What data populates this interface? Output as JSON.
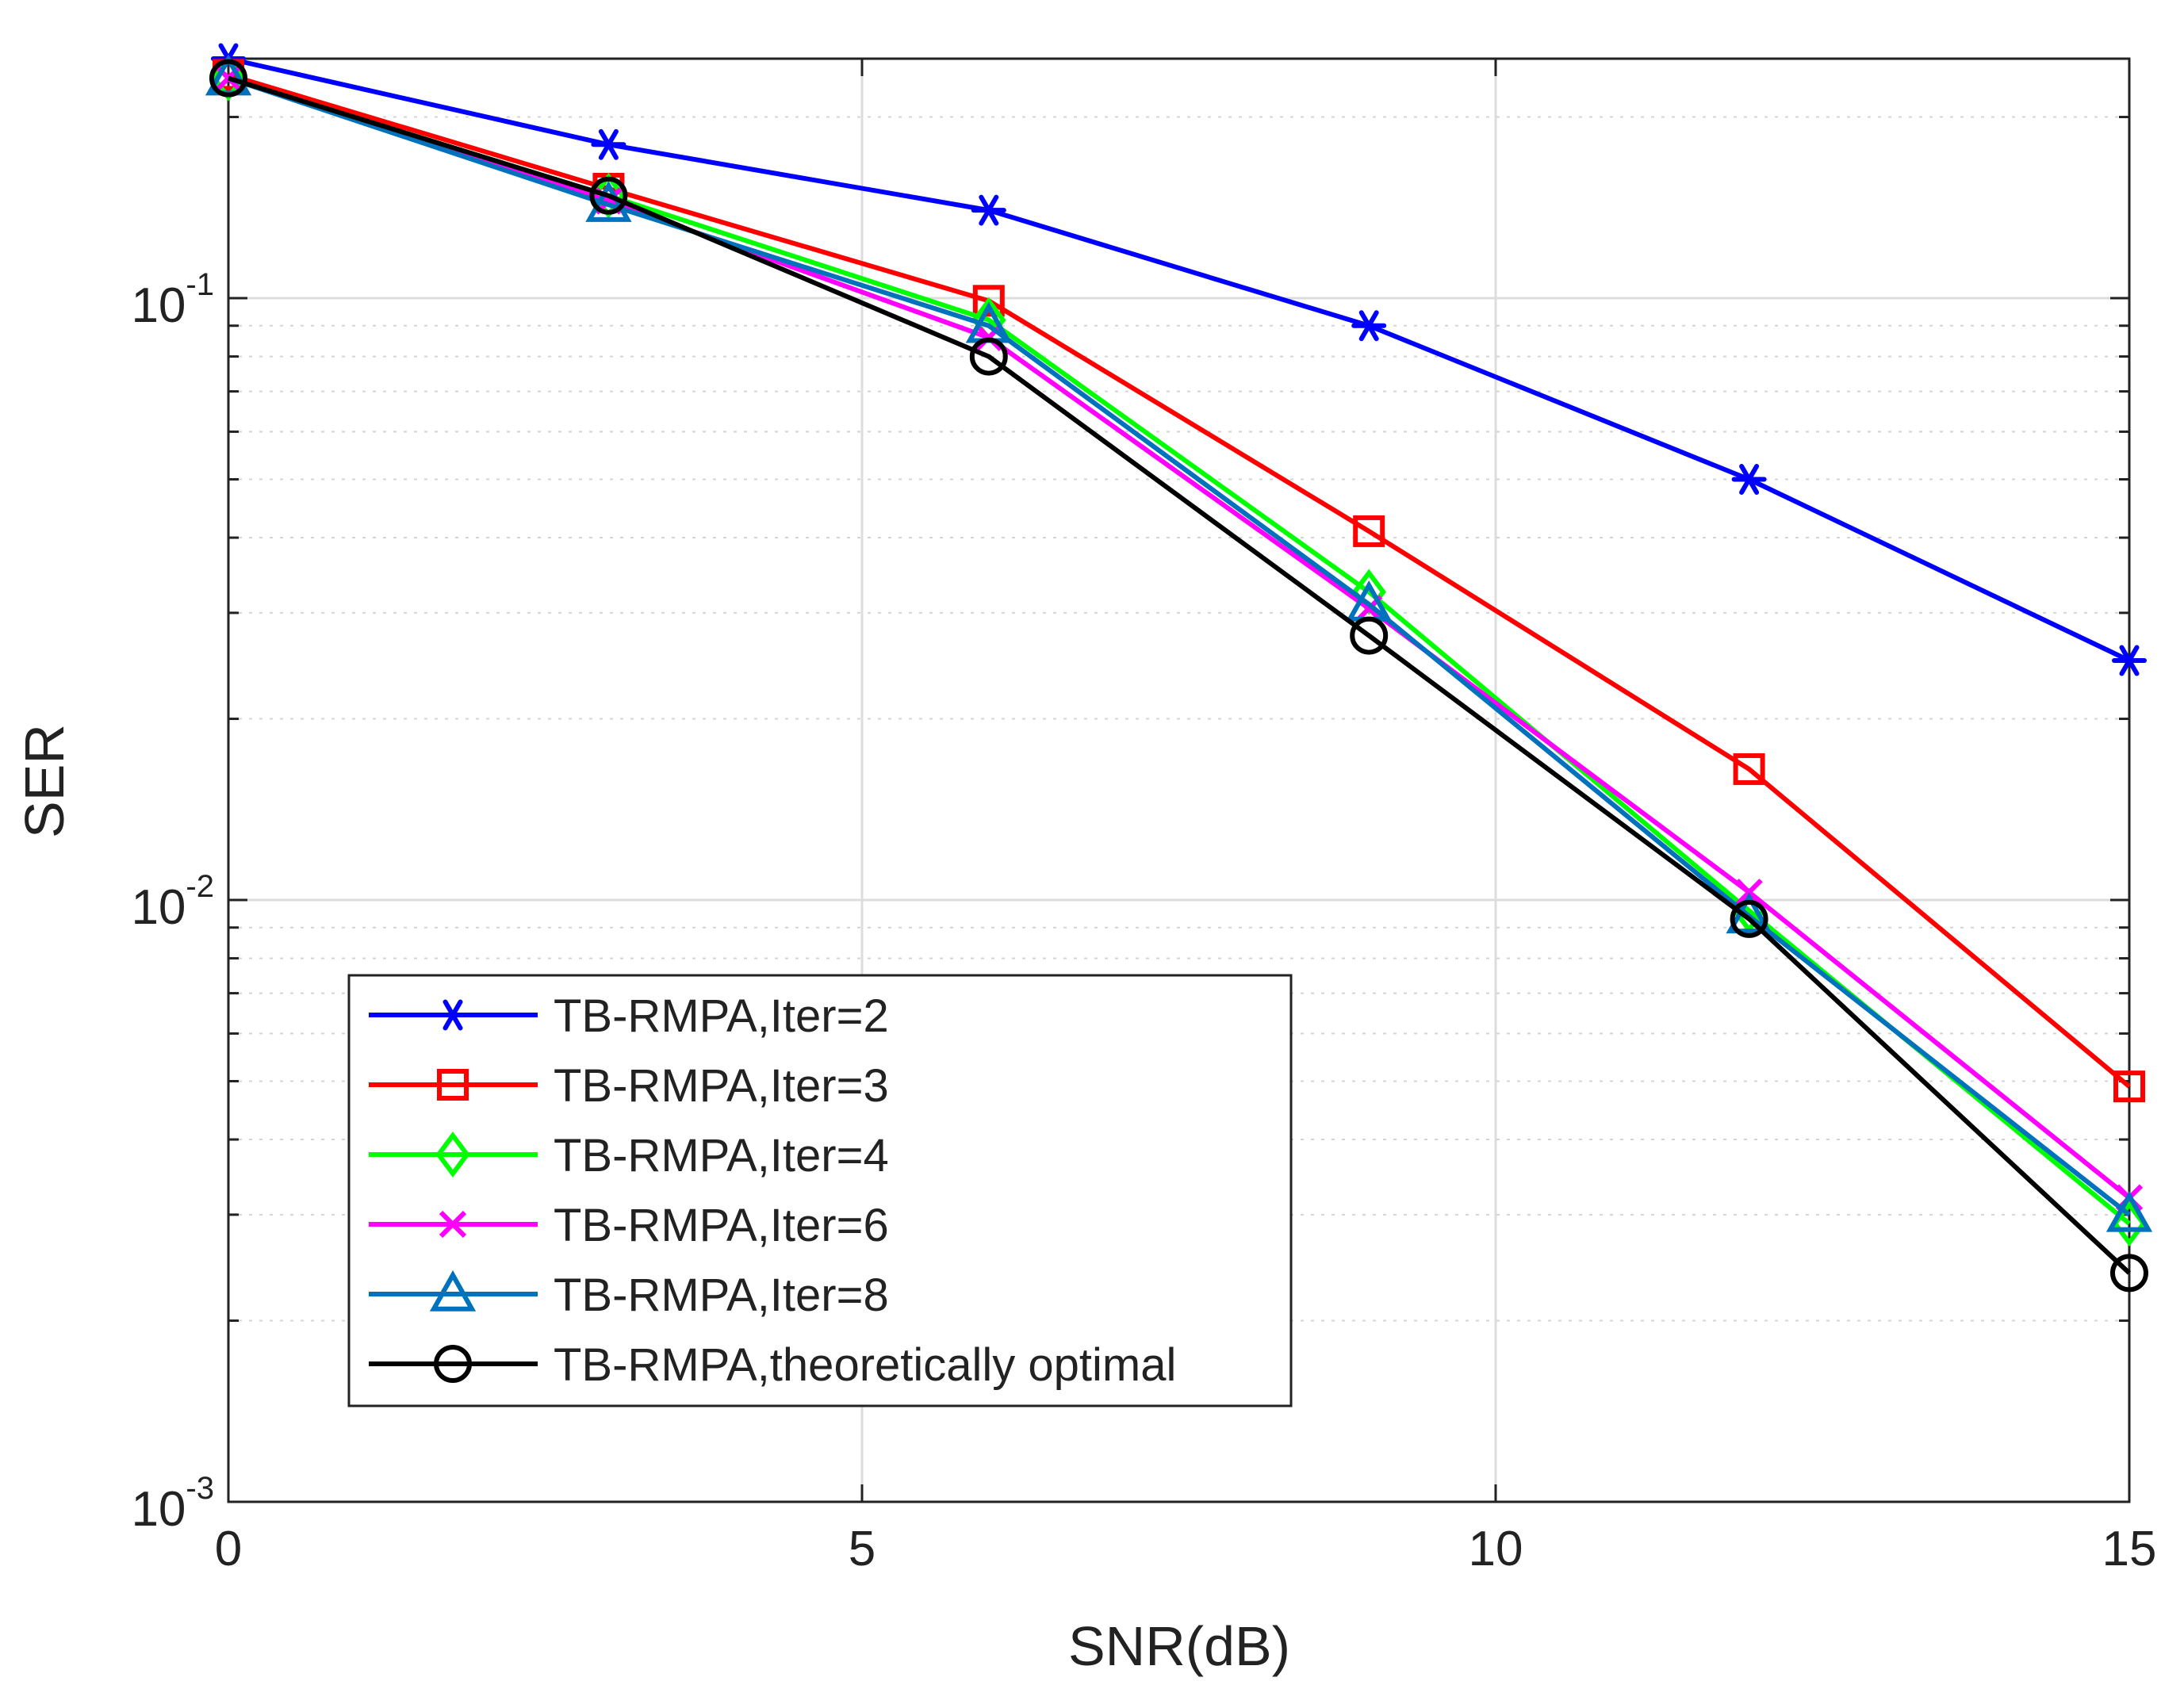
{
  "chart_data": {
    "type": "line",
    "title": "",
    "xlabel": "SNR(dB)",
    "ylabel": "SER",
    "xlim": [
      0,
      15
    ],
    "ylim": [
      0.001,
      0.25
    ],
    "yscale": "log",
    "grid": true,
    "legend_position": "lower-left",
    "x_ticks": [
      {
        "value": 0,
        "label": "0"
      },
      {
        "value": 5,
        "label": "5"
      },
      {
        "value": 10,
        "label": "10"
      },
      {
        "value": 15,
        "label": "15"
      }
    ],
    "y_ticks": [
      {
        "value": 0.1,
        "base": "10",
        "exp": "-1"
      },
      {
        "value": 0.01,
        "base": "10",
        "exp": "-2"
      },
      {
        "value": 0.001,
        "base": "10",
        "exp": "-3"
      }
    ],
    "x": [
      0,
      3,
      6,
      9,
      12,
      15
    ],
    "series": [
      {
        "name": "TB-RMPA,Iter=2",
        "color": "#0000ff",
        "marker": "asterisk",
        "values": [
          0.25,
          0.18,
          0.14,
          0.09,
          0.05,
          0.025
        ]
      },
      {
        "name": "TB-RMPA,Iter=3",
        "color": "#ff0000",
        "marker": "square",
        "values": [
          0.235,
          0.152,
          0.099,
          0.041,
          0.0165,
          0.0049
        ]
      },
      {
        "name": "TB-RMPA,Iter=4",
        "color": "#00ff00",
        "marker": "diamond",
        "values": [
          0.232,
          0.148,
          0.092,
          0.0325,
          0.0096,
          0.0029
        ]
      },
      {
        "name": "TB-RMPA,Iter=6",
        "color": "#ff00ff",
        "marker": "x",
        "values": [
          0.232,
          0.145,
          0.086,
          0.0305,
          0.0103,
          0.0032
        ]
      },
      {
        "name": "TB-RMPA,Iter=8",
        "color": "#0072bd",
        "marker": "triangle",
        "values": [
          0.232,
          0.143,
          0.09,
          0.031,
          0.0094,
          0.003
        ]
      },
      {
        "name": "TB-RMPA,theoretically optimal",
        "color": "#000000",
        "marker": "circle",
        "values": [
          0.232,
          0.148,
          0.08,
          0.0275,
          0.0093,
          0.0024
        ]
      }
    ]
  }
}
